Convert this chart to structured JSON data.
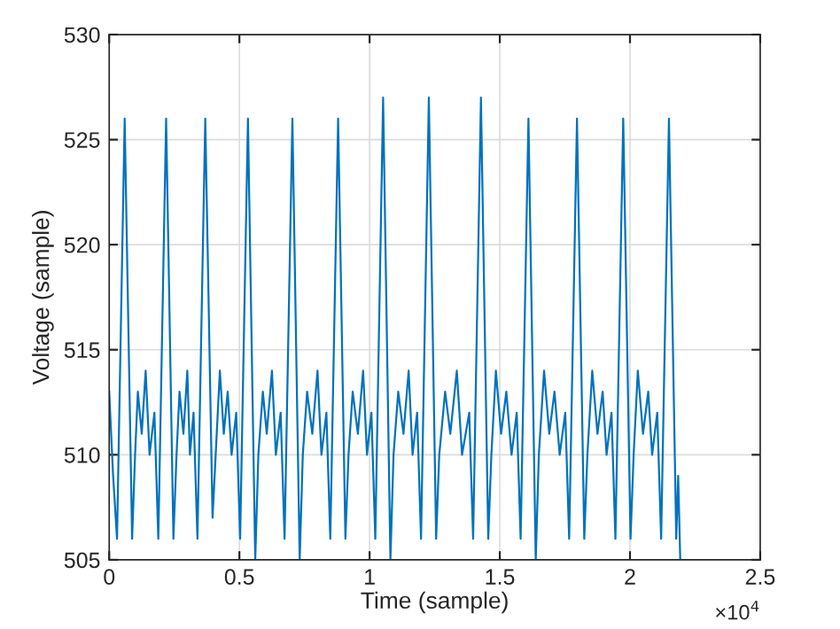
{
  "chart_data": {
    "type": "line",
    "xlabel": "Time (sample)",
    "ylabel": "Voltage (sample)",
    "annotations": [
      "×10$^{4}$"
    ],
    "xlim": [
      0,
      2.5
    ],
    "ylim": [
      505,
      530
    ],
    "xticks": [
      0,
      0.5,
      1,
      1.5,
      2,
      2.5
    ],
    "yticks": [
      505,
      510,
      515,
      520,
      525,
      530
    ],
    "grid": true,
    "marker": "none",
    "line_style": "solid",
    "series": [
      {
        "color": "#0072bd",
        "x": [
          0,
          0.015,
          0.03,
          0.0594,
          0.088,
          0.0994,
          0.11,
          0.125,
          0.14,
          0.155,
          0.1736,
          0.1886,
          0.2186,
          0.2466,
          0.2586,
          0.27,
          0.285,
          0.3,
          0.31,
          0.3239,
          0.3389,
          0.3689,
          0.3969,
          0.4089,
          0.425,
          0.44,
          0.455,
          0.47,
          0.4878,
          0.5028,
          0.5328,
          0.5608,
          0.5728,
          0.59,
          0.605,
          0.625,
          0.64,
          0.6585,
          0.6735,
          0.7035,
          0.7315,
          0.7435,
          0.76,
          0.78,
          0.8,
          0.815,
          0.8341,
          0.8491,
          0.8791,
          0.9071,
          0.9191,
          0.935,
          0.955,
          0.975,
          0.99,
          1.0069,
          1.0219,
          1.0519,
          1.0799,
          1.0919,
          1.11,
          1.13,
          1.15,
          1.165,
          1.1825,
          1.1975,
          1.2275,
          1.2555,
          1.2675,
          1.29,
          1.31,
          1.335,
          1.355,
          1.3826,
          1.3976,
          1.4276,
          1.4556,
          1.4676,
          1.485,
          1.505,
          1.525,
          1.545,
          1.565,
          1.58,
          1.61,
          1.638,
          1.65,
          1.67,
          1.69,
          1.71,
          1.73,
          1.7514,
          1.7664,
          1.7964,
          1.8244,
          1.8364,
          1.855,
          1.875,
          1.895,
          1.91,
          1.929,
          1.944,
          1.974,
          2.002,
          2.014,
          2.03,
          2.05,
          2.07,
          2.085,
          2.1046,
          2.1196,
          2.1496,
          2.1776,
          2.185,
          2.193
        ],
        "values": [
          513,
          509,
          506,
          526,
          506,
          510,
          513,
          511,
          514,
          510,
          512,
          506,
          526,
          506,
          510,
          513,
          511,
          514,
          510,
          512,
          506,
          526,
          507,
          510,
          514,
          511,
          513,
          510,
          512,
          506,
          526,
          505,
          510,
          513,
          511,
          514,
          510,
          512,
          506,
          526,
          505,
          510,
          513,
          511,
          514,
          510,
          512,
          506,
          526,
          506,
          510,
          513,
          511,
          514,
          510,
          512,
          506,
          527,
          505,
          510,
          513,
          511,
          514,
          510,
          512,
          506,
          527,
          506,
          510,
          513,
          511,
          514,
          510,
          512,
          506,
          527,
          506,
          510,
          514,
          511,
          513,
          510,
          512,
          506,
          526,
          505,
          510,
          514,
          511,
          513,
          510,
          512,
          506,
          526,
          506,
          510,
          514,
          511,
          513,
          510,
          512,
          506,
          526,
          506,
          510,
          514,
          511,
          513,
          510,
          512,
          506,
          526,
          506,
          509,
          505
        ]
      }
    ]
  }
}
